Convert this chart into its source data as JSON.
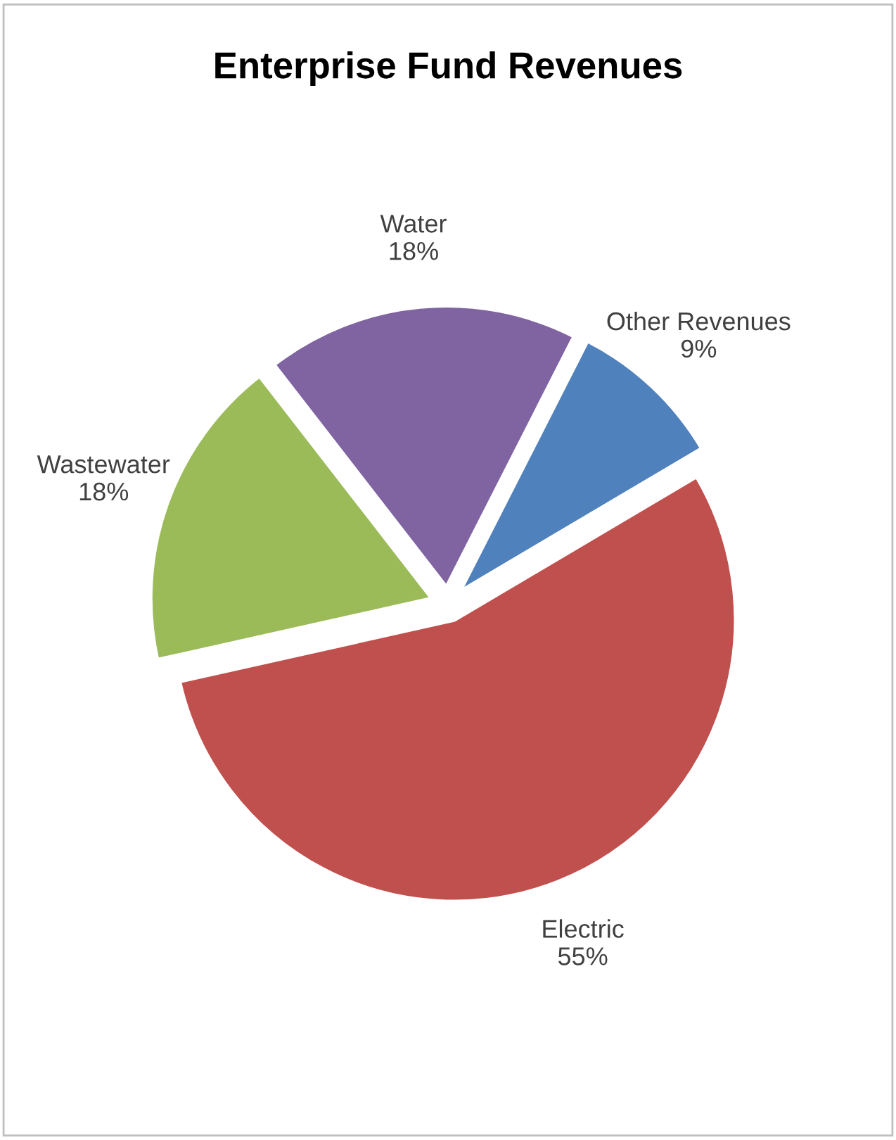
{
  "chart_data": {
    "type": "pie",
    "title": "Enterprise Fund Revenues",
    "categories": [
      "Other Revenues",
      "Electric",
      "Wastewater",
      "Water"
    ],
    "values": [
      9,
      55,
      18,
      18
    ],
    "value_labels": [
      "9%",
      "55%",
      "18%",
      "18%"
    ],
    "colors": [
      "#4f81bd",
      "#c0504d",
      "#9bbb59",
      "#8064a2"
    ],
    "legend": false
  }
}
